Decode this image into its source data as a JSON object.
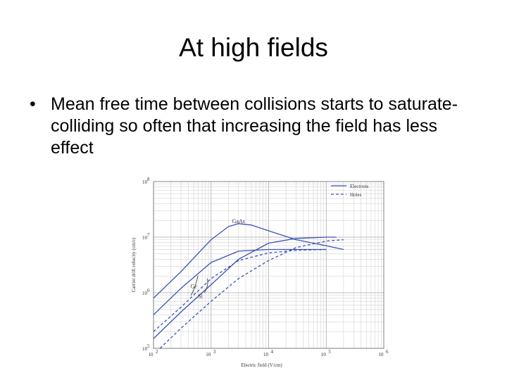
{
  "slide": {
    "title": "At high fields",
    "bullets": [
      "Mean free time between collisions starts to saturate- colliding so often that increasing the field has less effect"
    ]
  },
  "chart_data": {
    "type": "line",
    "xscale": "log",
    "yscale": "log",
    "xlim": [
      100,
      1000000
    ],
    "ylim": [
      100000,
      100000000
    ],
    "xlabel": "Electric field (V/cm)",
    "ylabel": "Carrier drift velocity (cm/s)",
    "x_ticks": [
      {
        "value": 100,
        "base": "10",
        "exp": "2"
      },
      {
        "value": 1000,
        "base": "10",
        "exp": "3"
      },
      {
        "value": 10000,
        "base": "10",
        "exp": "4"
      },
      {
        "value": 100000,
        "base": "10",
        "exp": "5"
      },
      {
        "value": 1000000,
        "base": "10",
        "exp": "6"
      }
    ],
    "y_ticks": [
      {
        "value": 100000,
        "base": "10",
        "exp": "5"
      },
      {
        "value": 1000000,
        "base": "10",
        "exp": "6"
      },
      {
        "value": 10000000,
        "base": "10",
        "exp": "7"
      },
      {
        "value": 100000000,
        "base": "10",
        "exp": "8"
      }
    ],
    "grid": true,
    "legend_position": "top-right",
    "legend": [
      {
        "label": "Electrons",
        "style": "solid"
      },
      {
        "label": "Holes",
        "style": "dashed"
      }
    ],
    "line_color": "#3a53b8",
    "series": [
      {
        "style": "solid",
        "x": [
          100,
          300,
          1000,
          2000,
          3000,
          5000,
          10000,
          30000,
          100000,
          200000
        ],
        "y": [
          800000,
          2400000,
          9000000,
          15500000,
          17500000,
          16500000,
          13000000,
          9000000,
          7000000,
          6000000
        ]
      },
      {
        "style": "solid",
        "x": [
          100,
          300,
          1000,
          3000,
          10000,
          30000,
          100000
        ],
        "y": [
          400000,
          1200000,
          3500000,
          5600000,
          6000000,
          6000000,
          6000000
        ]
      },
      {
        "style": "solid",
        "x": [
          100,
          300,
          1000,
          3000,
          10000,
          30000,
          100000,
          150000
        ],
        "y": [
          150000,
          450000,
          1400000,
          4000000,
          7800000,
          9500000,
          10000000,
          10000000
        ]
      },
      {
        "style": "dashed",
        "x": [
          100,
          300,
          1000,
          3000,
          10000,
          30000,
          100000
        ],
        "y": [
          200000,
          550000,
          1800000,
          3800000,
          5200000,
          5800000,
          6000000
        ]
      },
      {
        "style": "dashed",
        "x": [
          130,
          300,
          1000,
          3000,
          10000,
          30000,
          100000,
          200000
        ],
        "y": [
          100000,
          230000,
          700000,
          1800000,
          3800000,
          6500000,
          8500000,
          9000000
        ]
      }
    ],
    "annotations": [
      {
        "text": "GaAs",
        "x": 3000,
        "y": 18000000
      },
      {
        "text": "Ge",
        "x": 500,
        "y": 1200000
      },
      {
        "text": "Si",
        "x": 650,
        "y": 800000
      }
    ]
  }
}
